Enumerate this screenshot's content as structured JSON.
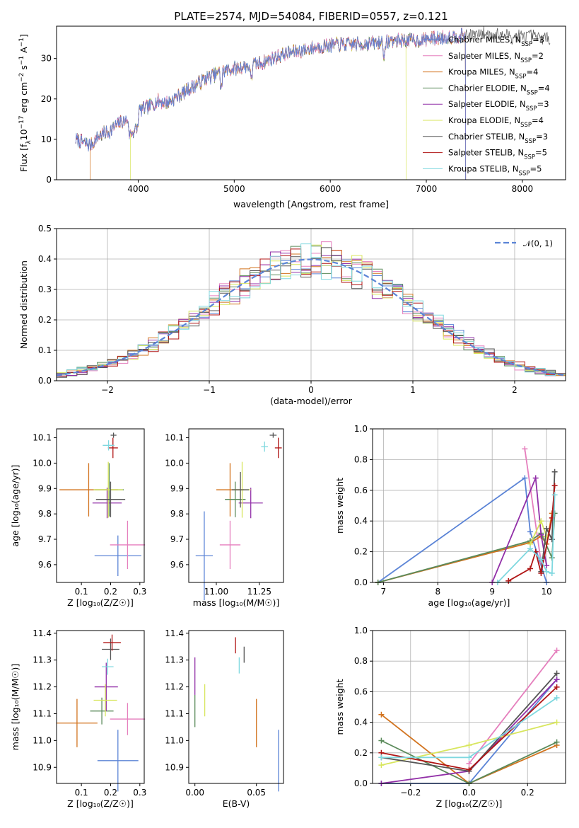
{
  "title": "PLATE=2574, MJD=54084, FIBERID=0557, z=0.121",
  "colors": {
    "Chabrier MILES": "#5b84d6",
    "Salpeter MILES": "#e57fbd",
    "Kroupa MILES": "#d2731e",
    "Chabrier ELODIE": "#5a8a5a",
    "Salpeter ELODIE": "#9230a8",
    "Kroupa ELODIE": "#d8e65e",
    "Chabrier STELIB": "#555555",
    "Salpeter STELIB": "#b01515",
    "Kroupa STELIB": "#7fd8df",
    "normal": "#5b84d6"
  },
  "legend": [
    {
      "model": "Chabrier MILES",
      "label": "Chabrier MILES, N",
      "sub": "SSP",
      "suffix": "=3"
    },
    {
      "model": "Salpeter MILES",
      "label": "Salpeter MILES, N",
      "sub": "SSP",
      "suffix": "=2"
    },
    {
      "model": "Kroupa MILES",
      "label": "Kroupa MILES, N",
      "sub": "SSP",
      "suffix": "=4"
    },
    {
      "model": "Chabrier ELODIE",
      "label": "Chabrier ELODIE, N",
      "sub": "SSP",
      "suffix": "=4"
    },
    {
      "model": "Salpeter ELODIE",
      "label": "Salpeter ELODIE, N",
      "sub": "SSP",
      "suffix": "=3"
    },
    {
      "model": "Kroupa ELODIE",
      "label": "Kroupa ELODIE, N",
      "sub": "SSP",
      "suffix": "=4"
    },
    {
      "model": "Chabrier STELIB",
      "label": "Chabrier STELIB, N",
      "sub": "SSP",
      "suffix": "=3"
    },
    {
      "model": "Salpeter STELIB",
      "label": "Salpeter STELIB, N",
      "sub": "SSP",
      "suffix": "=5"
    },
    {
      "model": "Kroupa STELIB",
      "label": "Kroupa STELIB, N",
      "sub": "SSP",
      "suffix": "=5"
    }
  ],
  "chart_data": [
    {
      "id": "spectrum",
      "type": "line",
      "xlabel": "wavelength [Angstrom, rest frame]",
      "ylabel_parts": [
        "Flux [f",
        "λ",
        "10",
        "−17",
        " erg cm",
        "−2",
        " s",
        "−1",
        " A",
        "−1",
        "]"
      ],
      "xlim": [
        3150,
        8450
      ],
      "ylim": [
        0,
        38
      ],
      "xticks": [
        4000,
        5000,
        6000,
        7000,
        8000
      ],
      "yticks": [
        0,
        10,
        20,
        30
      ],
      "continuum": [
        [
          3350,
          10
        ],
        [
          3500,
          8.5
        ],
        [
          3600,
          11
        ],
        [
          3700,
          12
        ],
        [
          3800,
          14
        ],
        [
          3900,
          15
        ],
        [
          4000,
          17
        ],
        [
          4100,
          18
        ],
        [
          4200,
          19.5
        ],
        [
          4300,
          19
        ],
        [
          4500,
          22
        ],
        [
          4700,
          25
        ],
        [
          4900,
          27
        ],
        [
          5100,
          28
        ],
        [
          5300,
          29
        ],
        [
          5500,
          31
        ],
        [
          5700,
          32
        ],
        [
          5900,
          33
        ],
        [
          6100,
          33.5
        ],
        [
          6300,
          33.5
        ],
        [
          6500,
          34
        ],
        [
          6700,
          34.5
        ],
        [
          6900,
          34.5
        ],
        [
          7100,
          35
        ],
        [
          7300,
          35.5
        ],
        [
          7500,
          36
        ],
        [
          7700,
          36
        ],
        [
          7900,
          35.5
        ],
        [
          8100,
          35.5
        ],
        [
          8250,
          35
        ]
      ],
      "range_starts": {
        "Kroupa MILES": 3500,
        "Kroupa ELODIE": 3920,
        "default": 3350
      },
      "range_ends": {
        "Kroupa ELODIE": 6790,
        "Salpeter STELIB": 7410,
        "Kroupa MILES": 7410,
        "Chabrier STELIB": 8290,
        "default": 7410
      },
      "grid": false
    },
    {
      "id": "residuals",
      "type": "histogram",
      "xlabel": "(data-model)/error",
      "ylabel": "Normed distribution",
      "xlim": [
        -2.5,
        2.5
      ],
      "ylim": [
        0,
        0.5
      ],
      "xticks": [
        -2,
        -1,
        0,
        1,
        2
      ],
      "yticks": [
        0,
        0.1,
        0.2,
        0.3,
        0.4,
        0.5
      ],
      "xtick_labels": [
        "−2",
        "−1",
        "0",
        "1",
        "2"
      ],
      "ytick_labels": [
        "0.0",
        "0.1",
        "0.2",
        "0.3",
        "0.4",
        "0.5"
      ],
      "bin_width": 0.1,
      "legend_label": "𝒩(0, 1)",
      "grid": true
    },
    {
      "id": "age_vs_Z",
      "type": "errorbar",
      "xlabel": "Z [log₁₀(Z/Z☉)]",
      "ylabel": "age  [log₁₀(age/yr)]",
      "xlim": [
        0.015,
        0.315
      ],
      "ylim": [
        9.53,
        10.135
      ],
      "xticks": [
        0.1,
        0.2,
        0.3
      ],
      "xtick_labels": [
        "0.1",
        "0.2",
        "0.3"
      ],
      "yticks": [
        9.6,
        9.7,
        9.8,
        9.9,
        10.0,
        10.1
      ],
      "ytick_labels": [
        "9.6",
        "9.7",
        "9.8",
        "9.9",
        "10.0",
        "10.1"
      ],
      "points": [
        {
          "model": "Chabrier MILES",
          "x": 0.225,
          "xerr": 0.08,
          "y": 9.635,
          "yerr": 0.08
        },
        {
          "model": "Salpeter MILES",
          "x": 0.258,
          "xerr": 0.06,
          "y": 9.678,
          "yerr": 0.095
        },
        {
          "model": "Kroupa MILES",
          "x": 0.125,
          "xerr": 0.1,
          "y": 9.895,
          "yerr": 0.105
        },
        {
          "model": "Chabrier ELODIE",
          "x": 0.195,
          "xerr": 0.05,
          "y": 9.895,
          "yerr": 0.105
        },
        {
          "model": "Salpeter ELODIE",
          "x": 0.188,
          "xerr": 0.05,
          "y": 9.843,
          "yerr": 0.06
        },
        {
          "model": "Kroupa ELODIE",
          "x": 0.192,
          "xerr": 0.05,
          "y": 9.895,
          "yerr": 0.11
        },
        {
          "model": "Chabrier STELIB",
          "x": 0.2,
          "xerr": 0.05,
          "y": 9.857,
          "yerr": 0.07
        },
        {
          "model": "Salpeter STELIB",
          "x": 0.208,
          "xerr": 0.017,
          "y": 10.06,
          "yerr": 0.04
        },
        {
          "model": "Chabrier STELIB",
          "x": 0.21,
          "xerr": 0.01,
          "y": 10.11,
          "yerr": 0.01
        },
        {
          "model": "Kroupa STELIB",
          "x": 0.193,
          "xerr": 0.02,
          "y": 10.07,
          "yerr": 0.02
        }
      ]
    },
    {
      "id": "age_vs_mass",
      "type": "errorbar",
      "xlabel": "mass [log₁₀(M/M☉)]",
      "ylabel": "",
      "xlim": [
        10.84,
        11.39
      ],
      "ylim": [
        9.53,
        10.135
      ],
      "xticks": [
        11.0,
        11.25
      ],
      "xtick_labels": [
        "11.00",
        "11.25"
      ],
      "yticks": [
        9.6,
        9.7,
        9.8,
        9.9,
        10.0,
        10.1
      ],
      "ytick_labels": [
        "9.6",
        "9.7",
        "9.8",
        "9.9",
        "10.0",
        "10.1"
      ],
      "points": [
        {
          "model": "Chabrier MILES",
          "x": 10.93,
          "xerr": 0.05,
          "y": 9.635,
          "yerr": 0.175
        },
        {
          "model": "Salpeter MILES",
          "x": 11.08,
          "xerr": 0.06,
          "y": 9.678,
          "yerr": 0.095
        },
        {
          "model": "Kroupa MILES",
          "x": 11.08,
          "xerr": 0.08,
          "y": 9.895,
          "yerr": 0.105
        },
        {
          "model": "Chabrier ELODIE",
          "x": 11.11,
          "xerr": 0.06,
          "y": 9.857,
          "yerr": 0.07
        },
        {
          "model": "Salpeter ELODIE",
          "x": 11.2,
          "xerr": 0.07,
          "y": 9.843,
          "yerr": 0.06
        },
        {
          "model": "Kroupa ELODIE",
          "x": 11.15,
          "xerr": 0.05,
          "y": 9.895,
          "yerr": 0.11
        },
        {
          "model": "Chabrier STELIB",
          "x": 11.14,
          "xerr": 0.05,
          "y": 9.895,
          "yerr": 0.07
        },
        {
          "model": "Salpeter STELIB",
          "x": 11.36,
          "xerr": 0.02,
          "y": 10.06,
          "yerr": 0.04
        },
        {
          "model": "Chabrier STELIB",
          "x": 11.33,
          "xerr": 0.02,
          "y": 10.11,
          "yerr": 0.01
        },
        {
          "model": "Kroupa STELIB",
          "x": 11.28,
          "xerr": 0.02,
          "y": 10.065,
          "yerr": 0.02
        }
      ]
    },
    {
      "id": "weight_vs_age",
      "type": "line",
      "xlabel": "age  [log₁₀(age/yr)]",
      "ylabel": "mass weight",
      "xlim": [
        6.8,
        10.35
      ],
      "ylim": [
        0,
        1
      ],
      "xticks": [
        7,
        8,
        9,
        10
      ],
      "xtick_labels": [
        "7",
        "8",
        "9",
        "10"
      ],
      "yticks": [
        0,
        0.2,
        0.4,
        0.6,
        0.8,
        1.0
      ],
      "ytick_labels": [
        "0.0",
        "0.2",
        "0.4",
        "0.6",
        "0.8",
        "1.0"
      ],
      "grid": true,
      "series": [
        {
          "model": "Chabrier MILES",
          "x": [
            6.9,
            9.6,
            9.7,
            10.0
          ],
          "y": [
            0.0,
            0.68,
            0.33,
            0.0
          ]
        },
        {
          "model": "Salpeter MILES",
          "x": [
            9.6,
            9.9
          ],
          "y": [
            0.87,
            0.13
          ]
        },
        {
          "model": "Kroupa MILES",
          "x": [
            6.9,
            9.7,
            9.9,
            10.0,
            10.1
          ],
          "y": [
            0.0,
            0.26,
            0.3,
            0.25,
            0.45
          ]
        },
        {
          "model": "Chabrier ELODIE",
          "x": [
            6.9,
            9.7,
            9.9,
            10.1,
            10.15
          ],
          "y": [
            0.0,
            0.27,
            0.32,
            0.16,
            0.45
          ]
        },
        {
          "model": "Salpeter ELODIE",
          "x": [
            9.0,
            9.8,
            9.9,
            10.0
          ],
          "y": [
            0.0,
            0.68,
            0.31,
            0.11
          ]
        },
        {
          "model": "Kroupa ELODIE",
          "x": [
            9.7,
            9.9,
            10.0
          ],
          "y": [
            0.25,
            0.4,
            0.3
          ]
        },
        {
          "model": "Chabrier STELIB",
          "x": [
            9.9,
            10.0,
            10.1,
            10.15
          ],
          "y": [
            0.07,
            0.35,
            0.28,
            0.72
          ]
        },
        {
          "model": "Salpeter STELIB",
          "x": [
            9.3,
            9.7,
            9.8,
            9.9,
            10.1,
            10.15
          ],
          "y": [
            0.01,
            0.09,
            0.2,
            0.06,
            0.42,
            0.63
          ]
        },
        {
          "model": "Kroupa STELIB",
          "x": [
            9.1,
            9.7,
            9.9,
            10.0,
            10.1,
            10.15
          ],
          "y": [
            0.0,
            0.22,
            0.15,
            0.07,
            0.06,
            0.57
          ]
        }
      ]
    },
    {
      "id": "mass_vs_Z",
      "type": "errorbar",
      "xlabel": "Z [log₁₀(Z/Z☉)]",
      "ylabel": "mass [log₁₀(M/M☉)]",
      "xlim": [
        0.015,
        0.315
      ],
      "ylim": [
        10.84,
        11.41
      ],
      "xticks": [
        0.1,
        0.2,
        0.3
      ],
      "xtick_labels": [
        "0.1",
        "0.2",
        "0.3"
      ],
      "yticks": [
        10.9,
        11.0,
        11.1,
        11.2,
        11.3,
        11.4
      ],
      "ytick_labels": [
        "10.9",
        "11.0",
        "11.1",
        "11.2",
        "11.3",
        "11.4"
      ],
      "points": [
        {
          "model": "Chabrier MILES",
          "x": 0.225,
          "xerr": 0.07,
          "y": 10.925,
          "yerr": 0.115
        },
        {
          "model": "Salpeter MILES",
          "x": 0.258,
          "xerr": 0.06,
          "y": 11.08,
          "yerr": 0.06
        },
        {
          "model": "Kroupa MILES",
          "x": 0.085,
          "xerr": 0.07,
          "y": 11.065,
          "yerr": 0.09
        },
        {
          "model": "Chabrier ELODIE",
          "x": 0.17,
          "xerr": 0.04,
          "y": 11.11,
          "yerr": 0.05
        },
        {
          "model": "Salpeter ELODIE",
          "x": 0.185,
          "xerr": 0.04,
          "y": 11.2,
          "yerr": 0.09
        },
        {
          "model": "Kroupa ELODIE",
          "x": 0.182,
          "xerr": 0.04,
          "y": 11.15,
          "yerr": 0.06
        },
        {
          "model": "Chabrier STELIB",
          "x": 0.2,
          "xerr": 0.03,
          "y": 11.34,
          "yerr": 0.04
        },
        {
          "model": "Salpeter STELIB",
          "x": 0.205,
          "xerr": 0.03,
          "y": 11.365,
          "yerr": 0.03
        },
        {
          "model": "Kroupa STELIB",
          "x": 0.19,
          "xerr": 0.02,
          "y": 11.275,
          "yerr": 0.03
        }
      ]
    },
    {
      "id": "mass_vs_ebv",
      "type": "errorbar",
      "xlabel": "E(B-V)",
      "ylabel": "",
      "xlim": [
        -0.005,
        0.072
      ],
      "ylim": [
        10.84,
        11.41
      ],
      "xticks": [
        0.0,
        0.05
      ],
      "xtick_labels": [
        "0.00",
        "0.05"
      ],
      "yticks": [
        10.9,
        11.0,
        11.1,
        11.2,
        11.3,
        11.4
      ],
      "ytick_labels": [
        "10.9",
        "11.0",
        "11.1",
        "11.2",
        "11.3",
        "11.4"
      ],
      "points": [
        {
          "model": "Chabrier MILES",
          "x": 0.068,
          "xerr": 0,
          "y": 10.925,
          "yerr": 0.115
        },
        {
          "model": "Kroupa MILES",
          "x": 0.05,
          "xerr": 0,
          "y": 11.065,
          "yerr": 0.09
        },
        {
          "model": "Chabrier ELODIE",
          "x": 0.0,
          "xerr": 0,
          "y": 11.11,
          "yerr": 0.06
        },
        {
          "model": "Salpeter ELODIE",
          "x": 0.0,
          "xerr": 0,
          "y": 11.24,
          "yerr": 0.07
        },
        {
          "model": "Kroupa ELODIE",
          "x": 0.008,
          "xerr": 0,
          "y": 11.15,
          "yerr": 0.06
        },
        {
          "model": "Chabrier STELIB",
          "x": 0.04,
          "xerr": 0,
          "y": 11.32,
          "yerr": 0.03
        },
        {
          "model": "Salpeter STELIB",
          "x": 0.033,
          "xerr": 0,
          "y": 11.355,
          "yerr": 0.03
        },
        {
          "model": "Kroupa STELIB",
          "x": 0.036,
          "xerr": 0,
          "y": 11.28,
          "yerr": 0.03
        }
      ]
    },
    {
      "id": "weight_vs_Z",
      "type": "line",
      "xlabel": "Z [log₁₀(Z/Z☉)]",
      "ylabel": "mass weight",
      "xlim": [
        -0.33,
        0.33
      ],
      "ylim": [
        0,
        1
      ],
      "xticks": [
        -0.2,
        0.0,
        0.2
      ],
      "xtick_labels": [
        "−0.2",
        "0.0",
        "0.2"
      ],
      "yticks": [
        0,
        0.2,
        0.4,
        0.6,
        0.8,
        1.0
      ],
      "ytick_labels": [
        "0.0",
        "0.2",
        "0.4",
        "0.6",
        "0.8",
        "1.0"
      ],
      "grid": true,
      "series": [
        {
          "model": "Chabrier MILES",
          "x": [
            -0.3,
            0.0,
            0.3
          ],
          "y": [
            0.0,
            0.0,
            0.68
          ]
        },
        {
          "model": "Salpeter MILES",
          "x": [
            0.0,
            0.3
          ],
          "y": [
            0.13,
            0.87
          ]
        },
        {
          "model": "Kroupa MILES",
          "x": [
            -0.3,
            0.0,
            0.3
          ],
          "y": [
            0.45,
            0.0,
            0.25
          ]
        },
        {
          "model": "Chabrier ELODIE",
          "x": [
            -0.3,
            0.0,
            0.3
          ],
          "y": [
            0.28,
            0.0,
            0.27
          ]
        },
        {
          "model": "Salpeter ELODIE",
          "x": [
            -0.3,
            0.0,
            0.3
          ],
          "y": [
            0.0,
            0.08,
            0.68
          ]
        },
        {
          "model": "Kroupa ELODIE",
          "x": [
            -0.3,
            0.0,
            0.3
          ],
          "y": [
            0.12,
            0.25,
            0.4
          ]
        },
        {
          "model": "Chabrier STELIB",
          "x": [
            -0.3,
            0.0,
            0.3
          ],
          "y": [
            0.17,
            0.08,
            0.72
          ]
        },
        {
          "model": "Salpeter STELIB",
          "x": [
            -0.3,
            0.0,
            0.3
          ],
          "y": [
            0.2,
            0.09,
            0.63
          ]
        },
        {
          "model": "Kroupa STELIB",
          "x": [
            -0.3,
            0.0,
            0.3
          ],
          "y": [
            0.17,
            0.17,
            0.56
          ]
        }
      ]
    }
  ]
}
